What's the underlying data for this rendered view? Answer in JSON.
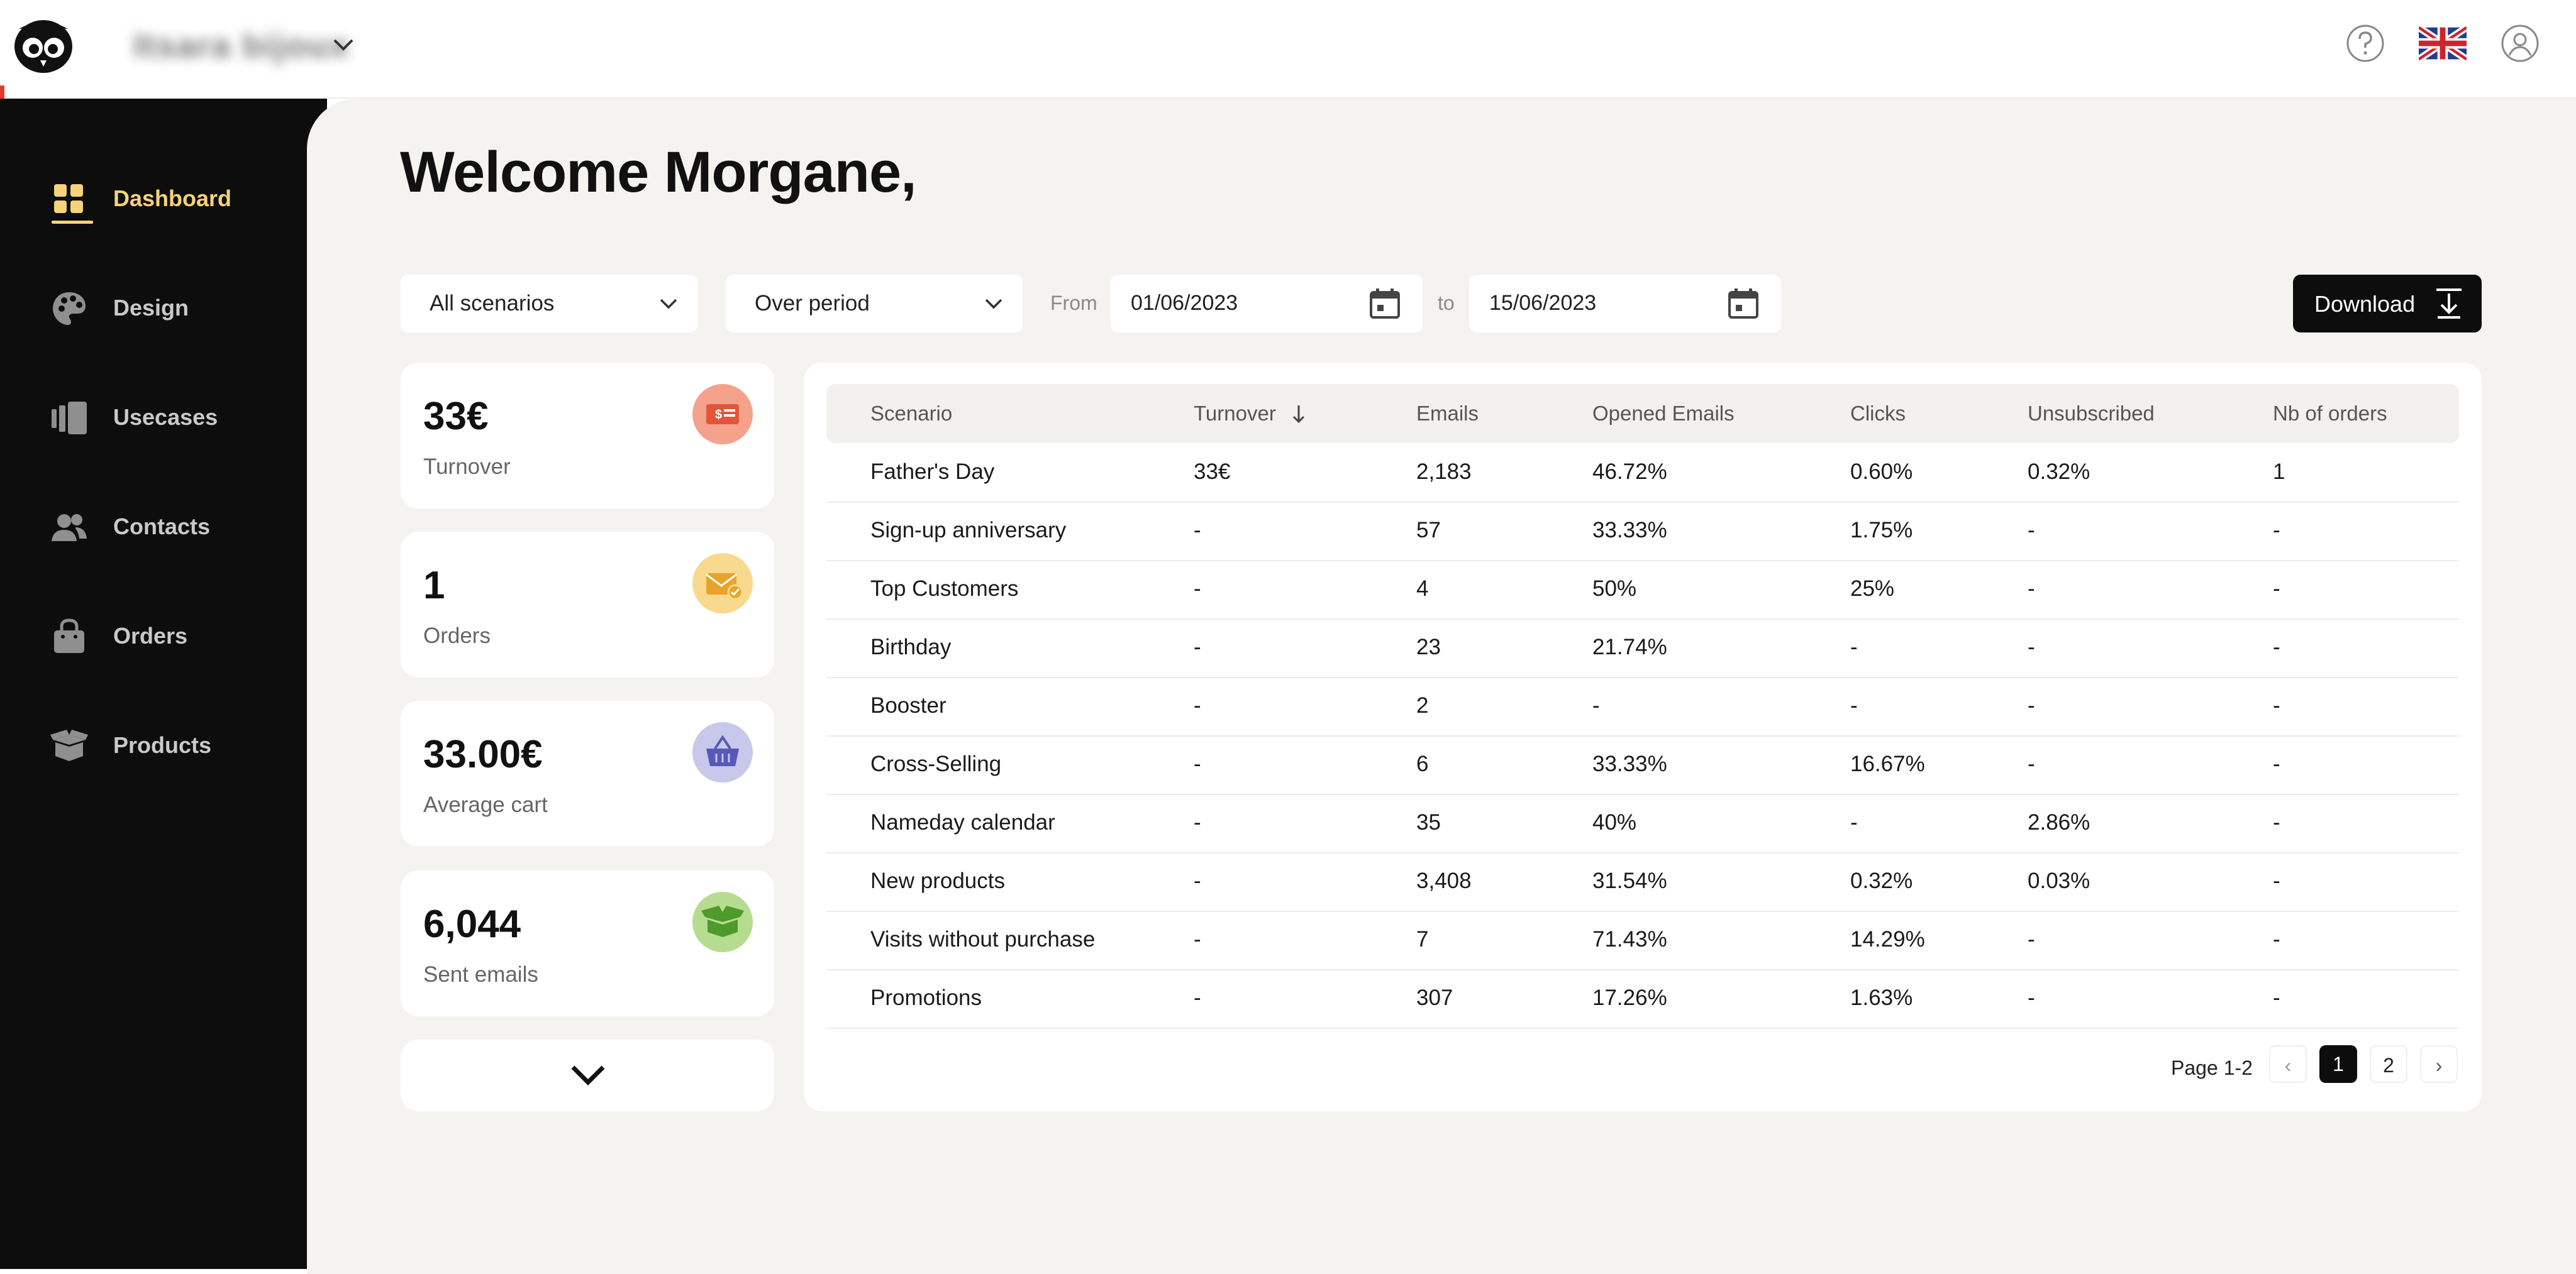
{
  "header": {
    "shop_name": "Itsara bijoux",
    "language": "English",
    "icons": [
      "help-icon",
      "uk-flag-icon",
      "user-account-icon"
    ]
  },
  "sidebar": {
    "items": [
      {
        "label": "Dashboard",
        "icon": "dashboard-grid-icon",
        "active": true
      },
      {
        "label": "Design",
        "icon": "palette-icon"
      },
      {
        "label": "Usecases",
        "icon": "usecases-icon"
      },
      {
        "label": "Contacts",
        "icon": "contacts-icon"
      },
      {
        "label": "Orders",
        "icon": "shopping-bag-icon"
      },
      {
        "label": "Products",
        "icon": "products-box-icon"
      }
    ]
  },
  "main": {
    "welcome": "Welcome Morgane,",
    "filters": {
      "scenario_select": "All scenarios",
      "period_select": "Over period",
      "from_label": "From",
      "from_date": "01/06/2023",
      "to_label": "to",
      "to_date": "15/06/2023",
      "download_label": "Download"
    },
    "stats": [
      {
        "value": "33€",
        "label": "Turnover",
        "icon": "invoice-icon",
        "color": "#f4a28c"
      },
      {
        "value": "1",
        "label": "Orders",
        "icon": "envelope-check-icon",
        "color": "#f8d98d"
      },
      {
        "value": "33.00€",
        "label": "Average cart",
        "icon": "basket-icon",
        "color": "#c7c8ea"
      },
      {
        "value": "6,044",
        "label": "Sent emails",
        "icon": "open-box-icon",
        "color": "#b6dc8f"
      }
    ],
    "table": {
      "headers": [
        "Scenario",
        "Turnover",
        "Emails",
        "Opened Emails",
        "Clicks",
        "Unsubscribed",
        "Nb of orders"
      ],
      "rows": [
        [
          "Father's Day",
          "33€",
          "2,183",
          "46.72%",
          "0.60%",
          "0.32%",
          "1"
        ],
        [
          "Sign-up anniversary",
          "-",
          "57",
          "33.33%",
          "1.75%",
          "-",
          "-"
        ],
        [
          "Top Customers",
          "-",
          "4",
          "50%",
          "25%",
          "-",
          "-"
        ],
        [
          "Birthday",
          "-",
          "23",
          "21.74%",
          "-",
          "-",
          "-"
        ],
        [
          "Booster",
          "-",
          "2",
          "-",
          "-",
          "-",
          "-"
        ],
        [
          "Cross-Selling",
          "-",
          "6",
          "33.33%",
          "16.67%",
          "-",
          "-"
        ],
        [
          "Nameday calendar",
          "-",
          "35",
          "40%",
          "-",
          "2.86%",
          "-"
        ],
        [
          "New products",
          "-",
          "3,408",
          "31.54%",
          "0.32%",
          "0.03%",
          "-"
        ],
        [
          "Visits without purchase",
          "-",
          "7",
          "71.43%",
          "14.29%",
          "-",
          "-"
        ],
        [
          "Promotions",
          "-",
          "307",
          "17.26%",
          "1.63%",
          "-",
          "-"
        ]
      ],
      "pagination": {
        "label": "Page 1-2",
        "pages": [
          "1",
          "2"
        ],
        "current": "1"
      }
    }
  },
  "colors": {
    "accent": "#f6d27a",
    "sidebar_bg": "#0d0d0d",
    "main_bg": "#f5f3ef"
  }
}
